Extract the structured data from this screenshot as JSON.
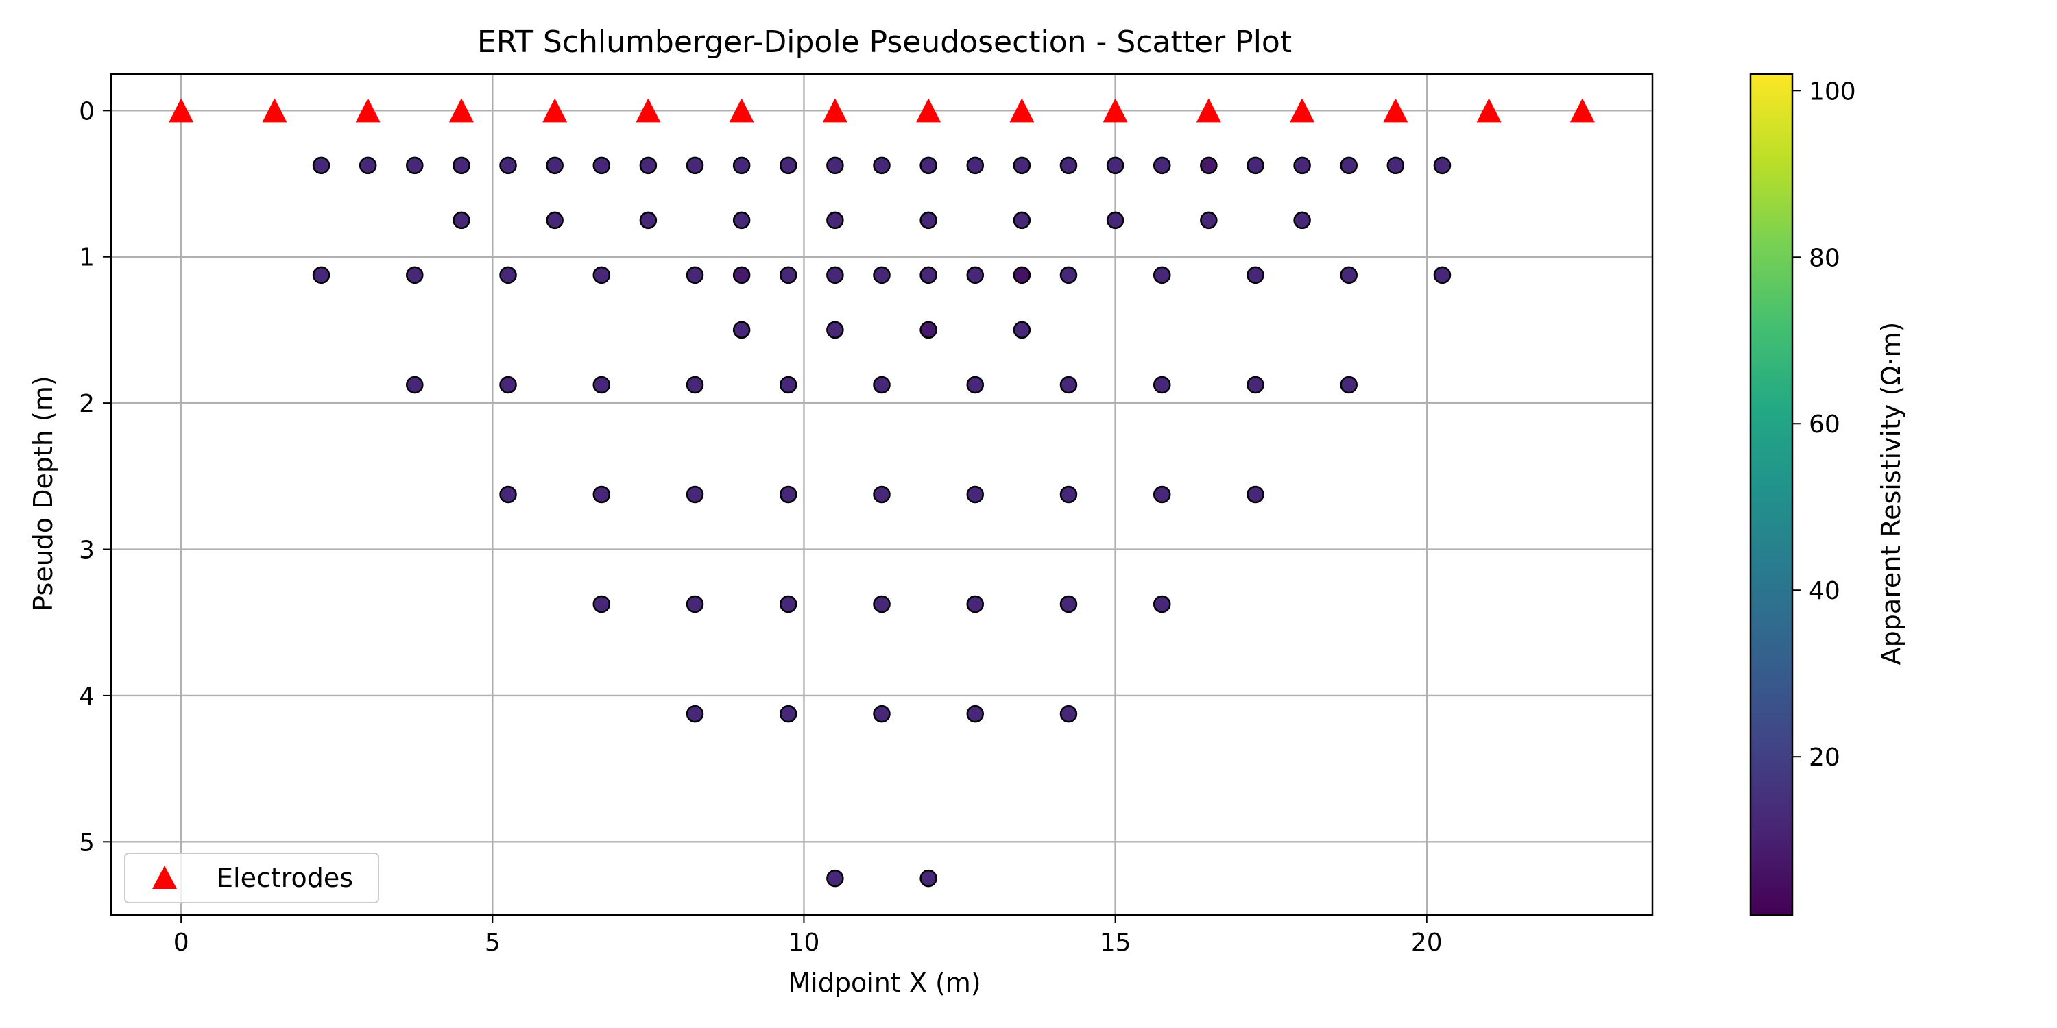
{
  "chart_data": {
    "type": "scatter",
    "title": "ERT Schlumberger-Dipole Pseudosection - Scatter Plot",
    "xlabel": "Midpoint X (m)",
    "ylabel": "Pseudo Depth (m)",
    "xlim": [
      -1.125,
      23.625
    ],
    "ylim": [
      5.5,
      -0.25
    ],
    "y_inverted": true,
    "grid": true,
    "xticks": [
      0,
      5,
      10,
      15,
      20
    ],
    "yticks": [
      0,
      1,
      2,
      3,
      4,
      5
    ],
    "legend": {
      "placement": "lower-left",
      "entries": [
        "Electrodes"
      ]
    },
    "colorbar": {
      "label": "Apparent Resistivity (Ω·m)",
      "colormap": "viridis",
      "range": [
        1,
        102
      ],
      "ticks": [
        20,
        40,
        60,
        80,
        100
      ]
    },
    "series": [
      {
        "name": "Electrodes",
        "marker": "triangle",
        "color": "#ff0000",
        "points": [
          [
            0,
            0
          ],
          [
            1.5,
            0
          ],
          [
            3,
            0
          ],
          [
            4.5,
            0
          ],
          [
            6,
            0
          ],
          [
            7.5,
            0
          ],
          [
            9,
            0
          ],
          [
            10.5,
            0
          ],
          [
            12,
            0
          ],
          [
            13.5,
            0
          ],
          [
            15,
            0
          ],
          [
            16.5,
            0
          ],
          [
            18,
            0
          ],
          [
            19.5,
            0
          ],
          [
            21,
            0
          ],
          [
            22.5,
            0
          ]
        ]
      },
      {
        "marker": "circle",
        "color_by": "apparent_resistivity",
        "points": [
          [
            2.25,
            0.375,
            12
          ],
          [
            3.0,
            0.375,
            12
          ],
          [
            3.75,
            0.375,
            12
          ],
          [
            4.5,
            0.375,
            12
          ],
          [
            5.25,
            0.375,
            12
          ],
          [
            6.0,
            0.375,
            12
          ],
          [
            6.75,
            0.375,
            12
          ],
          [
            7.5,
            0.375,
            12
          ],
          [
            8.25,
            0.375,
            12
          ],
          [
            9.0,
            0.375,
            12
          ],
          [
            9.75,
            0.375,
            12
          ],
          [
            10.5,
            0.375,
            12
          ],
          [
            11.25,
            0.375,
            12
          ],
          [
            12.0,
            0.375,
            12
          ],
          [
            12.75,
            0.375,
            12
          ],
          [
            13.5,
            0.375,
            12
          ],
          [
            14.25,
            0.375,
            12
          ],
          [
            15.0,
            0.375,
            12
          ],
          [
            15.75,
            0.375,
            12
          ],
          [
            16.5,
            0.375,
            8
          ],
          [
            17.25,
            0.375,
            12
          ],
          [
            18.0,
            0.375,
            12
          ],
          [
            18.75,
            0.375,
            12
          ],
          [
            19.5,
            0.375,
            12
          ],
          [
            20.25,
            0.375,
            12
          ],
          [
            4.5,
            0.75,
            12
          ],
          [
            6.0,
            0.75,
            12
          ],
          [
            7.5,
            0.75,
            12
          ],
          [
            9.0,
            0.75,
            12
          ],
          [
            10.5,
            0.75,
            12
          ],
          [
            12.0,
            0.75,
            12
          ],
          [
            13.5,
            0.75,
            12
          ],
          [
            15.0,
            0.75,
            12
          ],
          [
            16.5,
            0.75,
            12
          ],
          [
            18.0,
            0.75,
            12
          ],
          [
            2.25,
            1.125,
            12
          ],
          [
            3.75,
            1.125,
            12
          ],
          [
            5.25,
            1.125,
            12
          ],
          [
            6.75,
            1.125,
            12
          ],
          [
            8.25,
            1.125,
            12
          ],
          [
            9.0,
            1.125,
            8
          ],
          [
            9.75,
            1.125,
            12
          ],
          [
            10.5,
            1.125,
            12
          ],
          [
            11.25,
            1.125,
            12
          ],
          [
            12.0,
            1.125,
            12
          ],
          [
            12.75,
            1.125,
            12
          ],
          [
            13.5,
            1.125,
            6
          ],
          [
            14.25,
            1.125,
            12
          ],
          [
            15.75,
            1.125,
            12
          ],
          [
            17.25,
            1.125,
            12
          ],
          [
            18.75,
            1.125,
            12
          ],
          [
            20.25,
            1.125,
            12
          ],
          [
            9.0,
            1.5,
            12
          ],
          [
            10.5,
            1.5,
            12
          ],
          [
            12.0,
            1.5,
            8
          ],
          [
            13.5,
            1.5,
            12
          ],
          [
            3.75,
            1.875,
            12
          ],
          [
            5.25,
            1.875,
            12
          ],
          [
            6.75,
            1.875,
            12
          ],
          [
            8.25,
            1.875,
            12
          ],
          [
            9.75,
            1.875,
            12
          ],
          [
            11.25,
            1.875,
            12
          ],
          [
            12.75,
            1.875,
            12
          ],
          [
            14.25,
            1.875,
            12
          ],
          [
            15.75,
            1.875,
            12
          ],
          [
            17.25,
            1.875,
            12
          ],
          [
            18.75,
            1.875,
            12
          ],
          [
            5.25,
            2.625,
            12
          ],
          [
            6.75,
            2.625,
            12
          ],
          [
            8.25,
            2.625,
            12
          ],
          [
            9.75,
            2.625,
            12
          ],
          [
            11.25,
            2.625,
            12
          ],
          [
            12.75,
            2.625,
            12
          ],
          [
            14.25,
            2.625,
            12
          ],
          [
            15.75,
            2.625,
            12
          ],
          [
            17.25,
            2.625,
            12
          ],
          [
            6.75,
            3.375,
            12
          ],
          [
            8.25,
            3.375,
            12
          ],
          [
            9.75,
            3.375,
            12
          ],
          [
            11.25,
            3.375,
            12
          ],
          [
            12.75,
            3.375,
            12
          ],
          [
            14.25,
            3.375,
            12
          ],
          [
            15.75,
            3.375,
            12
          ],
          [
            8.25,
            4.125,
            12
          ],
          [
            9.75,
            4.125,
            12
          ],
          [
            11.25,
            4.125,
            12
          ],
          [
            12.75,
            4.125,
            12
          ],
          [
            14.25,
            4.125,
            12
          ],
          [
            10.5,
            5.25,
            12
          ],
          [
            12.0,
            5.25,
            12
          ]
        ]
      }
    ]
  }
}
